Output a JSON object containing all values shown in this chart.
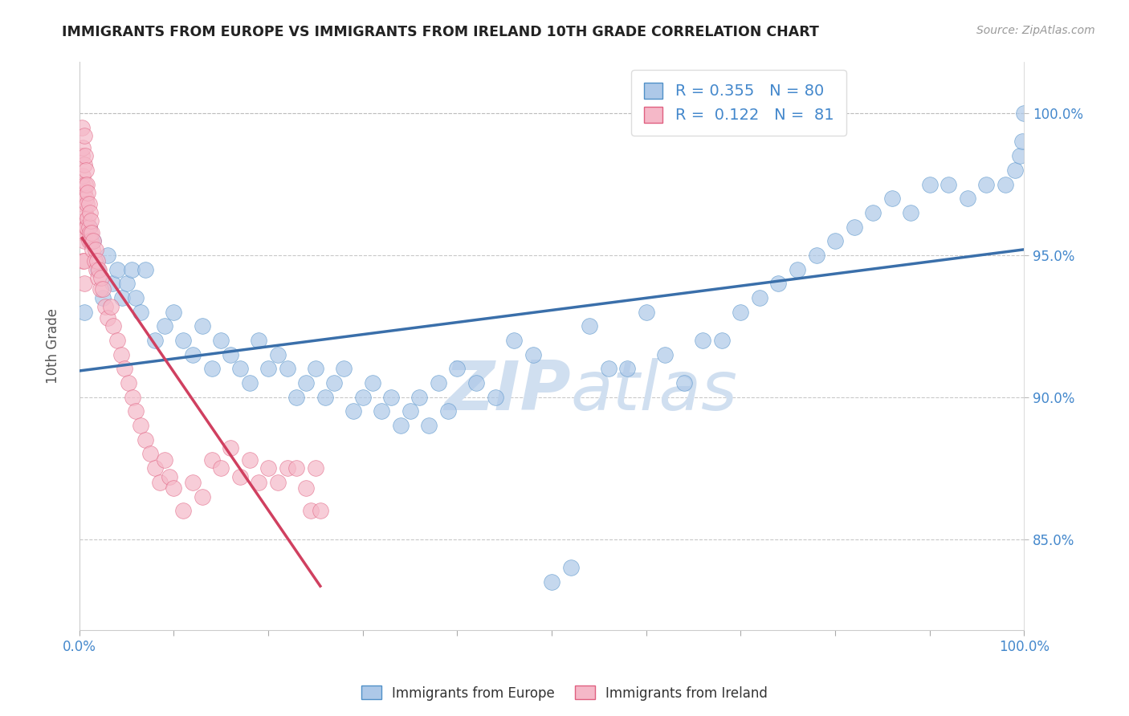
{
  "title": "IMMIGRANTS FROM EUROPE VS IMMIGRANTS FROM IRELAND 10TH GRADE CORRELATION CHART",
  "source_text": "Source: ZipAtlas.com",
  "ylabel": "10th Grade",
  "xlim": [
    0.0,
    1.0
  ],
  "ylim": [
    0.818,
    1.018
  ],
  "x_ticks": [
    0.0,
    0.1,
    0.2,
    0.3,
    0.4,
    0.5,
    0.6,
    0.7,
    0.8,
    0.9,
    1.0
  ],
  "y_ticks": [
    0.85,
    0.9,
    0.95,
    1.0
  ],
  "y_tick_labels": [
    "85.0%",
    "90.0%",
    "95.0%",
    "100.0%"
  ],
  "legend_blue_label": "Immigrants from Europe",
  "legend_pink_label": "Immigrants from Ireland",
  "R_blue": 0.355,
  "N_blue": 80,
  "R_pink": 0.122,
  "N_pink": 81,
  "blue_color": "#adc8e8",
  "blue_edge_color": "#5090c8",
  "pink_color": "#f5b8c8",
  "pink_edge_color": "#e06080",
  "blue_line_color": "#3a6faa",
  "pink_line_color": "#d04060",
  "watermark_color": "#d0dff0",
  "title_color": "#222222",
  "axis_label_color": "#4488cc",
  "blue_scatter_x": [
    0.005,
    0.01,
    0.015,
    0.02,
    0.025,
    0.03,
    0.035,
    0.04,
    0.045,
    0.05,
    0.055,
    0.06,
    0.065,
    0.07,
    0.08,
    0.09,
    0.1,
    0.11,
    0.12,
    0.13,
    0.14,
    0.15,
    0.16,
    0.17,
    0.18,
    0.19,
    0.2,
    0.21,
    0.22,
    0.23,
    0.24,
    0.25,
    0.26,
    0.27,
    0.28,
    0.29,
    0.3,
    0.31,
    0.32,
    0.33,
    0.34,
    0.35,
    0.36,
    0.37,
    0.38,
    0.39,
    0.4,
    0.42,
    0.44,
    0.46,
    0.48,
    0.5,
    0.52,
    0.54,
    0.56,
    0.58,
    0.6,
    0.62,
    0.64,
    0.66,
    0.68,
    0.7,
    0.72,
    0.74,
    0.76,
    0.78,
    0.8,
    0.82,
    0.84,
    0.86,
    0.88,
    0.9,
    0.92,
    0.94,
    0.96,
    0.98,
    0.99,
    0.995,
    0.998,
    1.0
  ],
  "blue_scatter_y": [
    0.93,
    0.96,
    0.955,
    0.945,
    0.935,
    0.95,
    0.94,
    0.945,
    0.935,
    0.94,
    0.945,
    0.935,
    0.93,
    0.945,
    0.92,
    0.925,
    0.93,
    0.92,
    0.915,
    0.925,
    0.91,
    0.92,
    0.915,
    0.91,
    0.905,
    0.92,
    0.91,
    0.915,
    0.91,
    0.9,
    0.905,
    0.91,
    0.9,
    0.905,
    0.91,
    0.895,
    0.9,
    0.905,
    0.895,
    0.9,
    0.89,
    0.895,
    0.9,
    0.89,
    0.905,
    0.895,
    0.91,
    0.905,
    0.9,
    0.92,
    0.915,
    0.835,
    0.84,
    0.925,
    0.91,
    0.91,
    0.93,
    0.915,
    0.905,
    0.92,
    0.92,
    0.93,
    0.935,
    0.94,
    0.945,
    0.95,
    0.955,
    0.96,
    0.965,
    0.97,
    0.965,
    0.975,
    0.975,
    0.97,
    0.975,
    0.975,
    0.98,
    0.985,
    0.99,
    1.0
  ],
  "pink_scatter_x": [
    0.003,
    0.003,
    0.003,
    0.004,
    0.004,
    0.004,
    0.004,
    0.004,
    0.005,
    0.005,
    0.005,
    0.005,
    0.005,
    0.005,
    0.005,
    0.006,
    0.006,
    0.006,
    0.006,
    0.007,
    0.007,
    0.007,
    0.008,
    0.008,
    0.008,
    0.009,
    0.009,
    0.01,
    0.01,
    0.01,
    0.011,
    0.011,
    0.012,
    0.012,
    0.013,
    0.014,
    0.015,
    0.016,
    0.017,
    0.018,
    0.019,
    0.02,
    0.021,
    0.022,
    0.023,
    0.025,
    0.027,
    0.03,
    0.033,
    0.036,
    0.04,
    0.044,
    0.048,
    0.052,
    0.056,
    0.06,
    0.065,
    0.07,
    0.075,
    0.08,
    0.085,
    0.09,
    0.095,
    0.1,
    0.11,
    0.12,
    0.13,
    0.14,
    0.15,
    0.16,
    0.17,
    0.18,
    0.19,
    0.2,
    0.21,
    0.22,
    0.23,
    0.24,
    0.245,
    0.25,
    0.255
  ],
  "pink_scatter_y": [
    0.995,
    0.985,
    0.975,
    0.988,
    0.978,
    0.968,
    0.958,
    0.948,
    0.992,
    0.982,
    0.972,
    0.962,
    0.955,
    0.948,
    0.94,
    0.985,
    0.975,
    0.965,
    0.958,
    0.98,
    0.97,
    0.96,
    0.975,
    0.968,
    0.96,
    0.972,
    0.963,
    0.968,
    0.96,
    0.955,
    0.965,
    0.958,
    0.962,
    0.955,
    0.958,
    0.952,
    0.955,
    0.948,
    0.952,
    0.945,
    0.948,
    0.942,
    0.945,
    0.938,
    0.942,
    0.938,
    0.932,
    0.928,
    0.932,
    0.925,
    0.92,
    0.915,
    0.91,
    0.905,
    0.9,
    0.895,
    0.89,
    0.885,
    0.88,
    0.875,
    0.87,
    0.878,
    0.872,
    0.868,
    0.86,
    0.87,
    0.865,
    0.878,
    0.875,
    0.882,
    0.872,
    0.878,
    0.87,
    0.875,
    0.87,
    0.875,
    0.875,
    0.868,
    0.86,
    0.875,
    0.86
  ]
}
